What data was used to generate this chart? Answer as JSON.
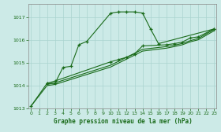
{
  "xlabel": "Graphe pression niveau de la mer (hPa)",
  "background_color": "#cceae7",
  "grid_color": "#aad4d0",
  "line_color": "#1a6b1a",
  "text_color": "#1a6b1a",
  "ylim": [
    1013.0,
    1017.6
  ],
  "xlim": [
    -0.3,
    23.3
  ],
  "yticks": [
    1013,
    1014,
    1015,
    1016,
    1017
  ],
  "xticks": [
    0,
    1,
    2,
    3,
    4,
    5,
    6,
    7,
    8,
    9,
    10,
    11,
    12,
    13,
    14,
    15,
    16,
    17,
    18,
    19,
    20,
    21,
    22,
    23
  ],
  "s1_x": [
    0,
    2,
    3,
    4,
    5,
    6,
    7,
    10,
    11,
    12,
    13,
    14,
    15,
    16,
    23
  ],
  "s1_y": [
    1013.1,
    1014.1,
    1014.1,
    1014.8,
    1014.85,
    1015.8,
    1015.95,
    1017.2,
    1017.25,
    1017.25,
    1017.25,
    1017.2,
    1016.5,
    1015.85,
    1016.5
  ],
  "s2_x": [
    2,
    3,
    10,
    11,
    12,
    13,
    14,
    17,
    18,
    19,
    20,
    21,
    23
  ],
  "s2_y": [
    1014.1,
    1014.2,
    1015.05,
    1015.15,
    1015.25,
    1015.4,
    1015.75,
    1015.8,
    1015.85,
    1015.92,
    1016.1,
    1016.15,
    1016.5
  ],
  "s3_x": [
    2,
    3,
    10,
    14,
    17,
    18,
    19,
    20,
    21,
    23
  ],
  "s3_y": [
    1014.05,
    1014.12,
    1014.9,
    1015.6,
    1015.72,
    1015.78,
    1015.86,
    1015.98,
    1016.08,
    1016.48
  ],
  "s4_x": [
    0,
    2,
    3,
    10,
    14,
    17,
    18,
    19,
    20,
    21,
    23
  ],
  "s4_y": [
    1013.1,
    1014.0,
    1014.05,
    1014.82,
    1015.52,
    1015.65,
    1015.72,
    1015.8,
    1015.93,
    1016.02,
    1016.42
  ]
}
